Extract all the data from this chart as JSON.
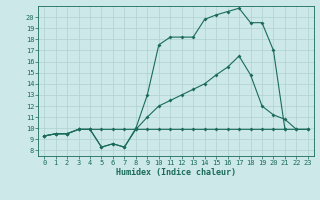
{
  "bg_color": "#cce8e8",
  "grid_color": "#aacccc",
  "line_color": "#1a6b5a",
  "xlabel": "Humidex (Indice chaleur)",
  "xlim": [
    -0.5,
    23.5
  ],
  "ylim": [
    7.5,
    21.0
  ],
  "xticks": [
    0,
    1,
    2,
    3,
    4,
    5,
    6,
    7,
    8,
    9,
    10,
    11,
    12,
    13,
    14,
    15,
    16,
    17,
    18,
    19,
    20,
    21,
    22,
    23
  ],
  "yticks": [
    8,
    9,
    10,
    11,
    12,
    13,
    14,
    15,
    16,
    17,
    18,
    19,
    20
  ],
  "curve1_x": [
    0,
    1,
    2,
    3,
    4,
    5,
    6,
    7,
    8,
    9,
    10,
    11,
    12,
    13,
    14,
    15,
    16,
    17,
    18,
    19,
    20,
    21,
    22,
    23
  ],
  "curve1_y": [
    9.3,
    9.5,
    9.5,
    9.9,
    9.9,
    9.9,
    9.9,
    9.9,
    9.9,
    9.9,
    9.9,
    9.9,
    9.9,
    9.9,
    9.9,
    9.9,
    9.9,
    9.9,
    9.9,
    9.9,
    9.9,
    9.9,
    9.9,
    9.9
  ],
  "curve2_x": [
    0,
    1,
    2,
    3,
    4,
    5,
    6,
    7,
    8,
    9,
    10,
    11,
    12,
    13,
    14,
    15,
    16,
    17,
    18,
    19,
    20,
    21
  ],
  "curve2_y": [
    9.3,
    9.5,
    9.5,
    9.9,
    9.9,
    8.3,
    8.6,
    8.3,
    10.0,
    13.0,
    17.5,
    18.2,
    18.2,
    18.2,
    19.8,
    20.2,
    20.5,
    20.8,
    19.5,
    19.5,
    17.0,
    9.9
  ],
  "curve3_x": [
    0,
    1,
    2,
    3,
    4,
    5,
    6,
    7,
    8,
    9,
    10,
    11,
    12,
    13,
    14,
    15,
    16,
    17,
    18,
    19,
    20,
    21,
    22,
    23
  ],
  "curve3_y": [
    9.3,
    9.5,
    9.5,
    9.9,
    9.9,
    8.3,
    8.6,
    8.3,
    9.9,
    11.0,
    12.0,
    12.5,
    13.0,
    13.5,
    14.0,
    14.8,
    15.5,
    16.5,
    14.8,
    12.0,
    11.2,
    10.8,
    9.9,
    9.9
  ]
}
